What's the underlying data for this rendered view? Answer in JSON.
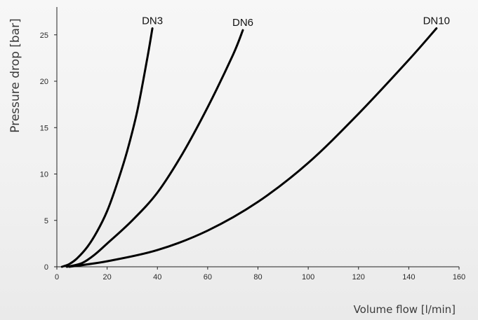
{
  "chart_data": {
    "type": "line",
    "xlabel": "Volume flow [l/min]",
    "ylabel": "Pressure drop [bar]",
    "xlim": [
      0,
      160
    ],
    "ylim": [
      0,
      28
    ],
    "x_ticks": [
      0,
      20,
      40,
      60,
      80,
      100,
      120,
      140,
      160
    ],
    "y_ticks": [
      0,
      5,
      10,
      15,
      20,
      25
    ],
    "grid": false,
    "legend": "none",
    "series": [
      {
        "name": "DN3",
        "color": "#000000",
        "x": [
          2,
          5,
          8,
          12,
          16,
          20,
          24,
          28,
          32,
          36,
          38
        ],
        "y": [
          0,
          0.3,
          0.9,
          2.1,
          3.8,
          6,
          9,
          12.5,
          16.8,
          22.5,
          25.7
        ]
      },
      {
        "name": "DN6",
        "color": "#000000",
        "x": [
          4,
          10,
          15,
          20,
          30,
          40,
          50,
          60,
          70,
          74
        ],
        "y": [
          0,
          0.4,
          1.3,
          2.5,
          5,
          8,
          12.2,
          17.2,
          22.8,
          25.5
        ]
      },
      {
        "name": "DN10",
        "color": "#000000",
        "x": [
          5,
          20,
          40,
          60,
          80,
          100,
          120,
          140,
          151
        ],
        "y": [
          0,
          0.6,
          1.8,
          3.9,
          7,
          11.2,
          16.5,
          22.3,
          25.7
        ]
      }
    ]
  }
}
